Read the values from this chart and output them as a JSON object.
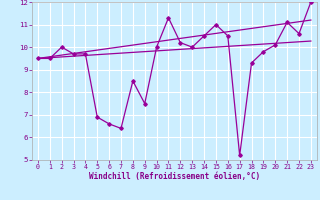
{
  "xlabel": "Windchill (Refroidissement éolien,°C)",
  "x": [
    0,
    1,
    2,
    3,
    4,
    5,
    6,
    7,
    8,
    9,
    10,
    11,
    12,
    13,
    14,
    15,
    16,
    17,
    18,
    19,
    20,
    21,
    22,
    23
  ],
  "y_main": [
    9.5,
    9.5,
    10.0,
    9.7,
    9.7,
    6.9,
    6.6,
    6.4,
    8.5,
    7.5,
    10.0,
    11.3,
    10.2,
    10.0,
    10.5,
    11.0,
    10.5,
    5.2,
    9.3,
    9.8,
    10.1,
    11.1,
    10.6,
    12.0
  ],
  "y_trend1_start": 9.5,
  "y_trend1_end": 10.27,
  "y_trend2_start": 9.5,
  "y_trend2_end": 11.2,
  "color_main": "#990099",
  "bg_color": "#cceeff",
  "grid_color": "#ffffff",
  "ylim": [
    5,
    12
  ],
  "xlim": [
    -0.5,
    23.5
  ],
  "yticks": [
    5,
    6,
    7,
    8,
    9,
    10,
    11,
    12
  ],
  "xticks": [
    0,
    1,
    2,
    3,
    4,
    5,
    6,
    7,
    8,
    9,
    10,
    11,
    12,
    13,
    14,
    15,
    16,
    17,
    18,
    19,
    20,
    21,
    22,
    23
  ],
  "tick_color": "#880088",
  "xlabel_fontsize": 5.5,
  "tick_fontsize": 4.8
}
